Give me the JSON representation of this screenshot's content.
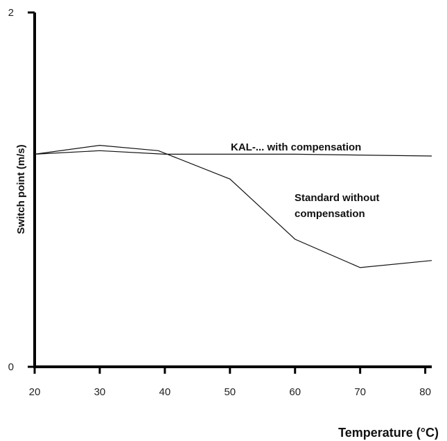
{
  "chart_data": {
    "type": "line",
    "xlabel": "Temperature (°C)",
    "ylabel": "Switch point (m/s)",
    "xlim": [
      20,
      81
    ],
    "ylim": [
      0,
      2
    ],
    "x_ticks": [
      20,
      30,
      40,
      50,
      60,
      70,
      80
    ],
    "y_ticks": [
      0,
      2
    ],
    "grid": false,
    "legend": "none",
    "series": [
      {
        "label": "KAL-... with compensation",
        "x": [
          20,
          30,
          40,
          60,
          81
        ],
        "y": [
          1.2,
          1.22,
          1.2,
          1.2,
          1.19
        ]
      },
      {
        "label": "Standard without compensation",
        "x": [
          20,
          30,
          39,
          50,
          60,
          70,
          81
        ],
        "y": [
          1.2,
          1.25,
          1.22,
          1.06,
          0.72,
          0.56,
          0.6
        ]
      }
    ],
    "annotations": [
      {
        "text": "KAL-... with compensation",
        "series": 0
      },
      {
        "text": "Standard without\ncompensation",
        "series": 1
      }
    ]
  }
}
